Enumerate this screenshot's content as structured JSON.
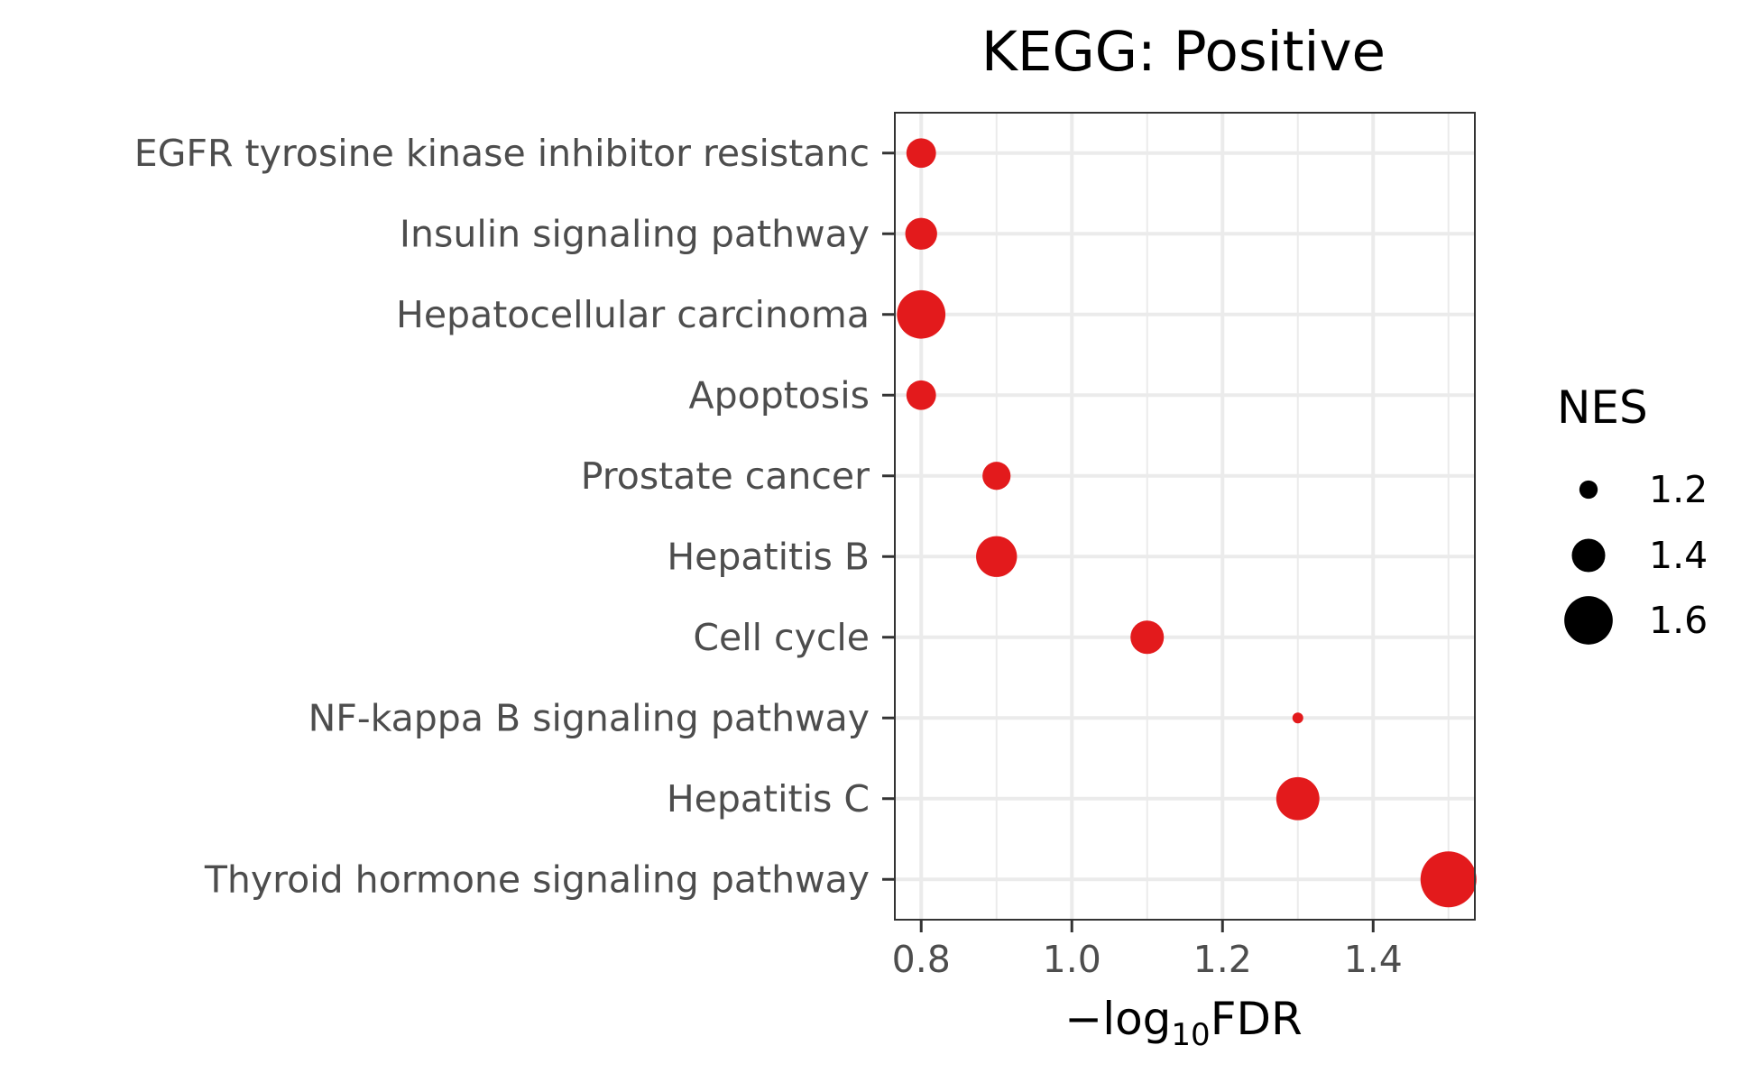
{
  "chart_data": {
    "type": "scatter",
    "title": "KEGG: Positive",
    "xlabel": {
      "prefix": "−log",
      "subscript": "10",
      "suffix": "FDR"
    },
    "ylabel": "",
    "xlim": [
      0.765,
      1.535
    ],
    "xticks": [
      0.8,
      1.0,
      1.2,
      1.4
    ],
    "xtick_labels": [
      "0.8",
      "1.0",
      "1.2",
      "1.4"
    ],
    "grid": true,
    "point_color": "#e31a1c",
    "categories": [
      "EGFR tyrosine kinase inhibitor resistanc",
      "Insulin signaling pathway",
      "Hepatocellular carcinoma",
      "Apoptosis",
      "Prostate cancer",
      "Hepatitis B",
      "Cell cycle",
      "NF-kappa B signaling pathway",
      "Hepatitis C",
      "Thyroid hormone signaling pathway"
    ],
    "x": [
      0.8,
      0.8,
      0.8,
      0.8,
      0.9,
      0.9,
      1.1,
      1.3,
      1.3,
      1.5
    ],
    "size": [
      1.35,
      1.38,
      1.6,
      1.35,
      1.33,
      1.5,
      1.4,
      1.1,
      1.53,
      1.7
    ],
    "size_legend": {
      "title": "NES",
      "position": "right",
      "values": [
        1.2,
        1.4,
        1.6
      ],
      "labels": [
        "1.2",
        "1.4",
        "1.6"
      ],
      "color": "#000000"
    }
  }
}
